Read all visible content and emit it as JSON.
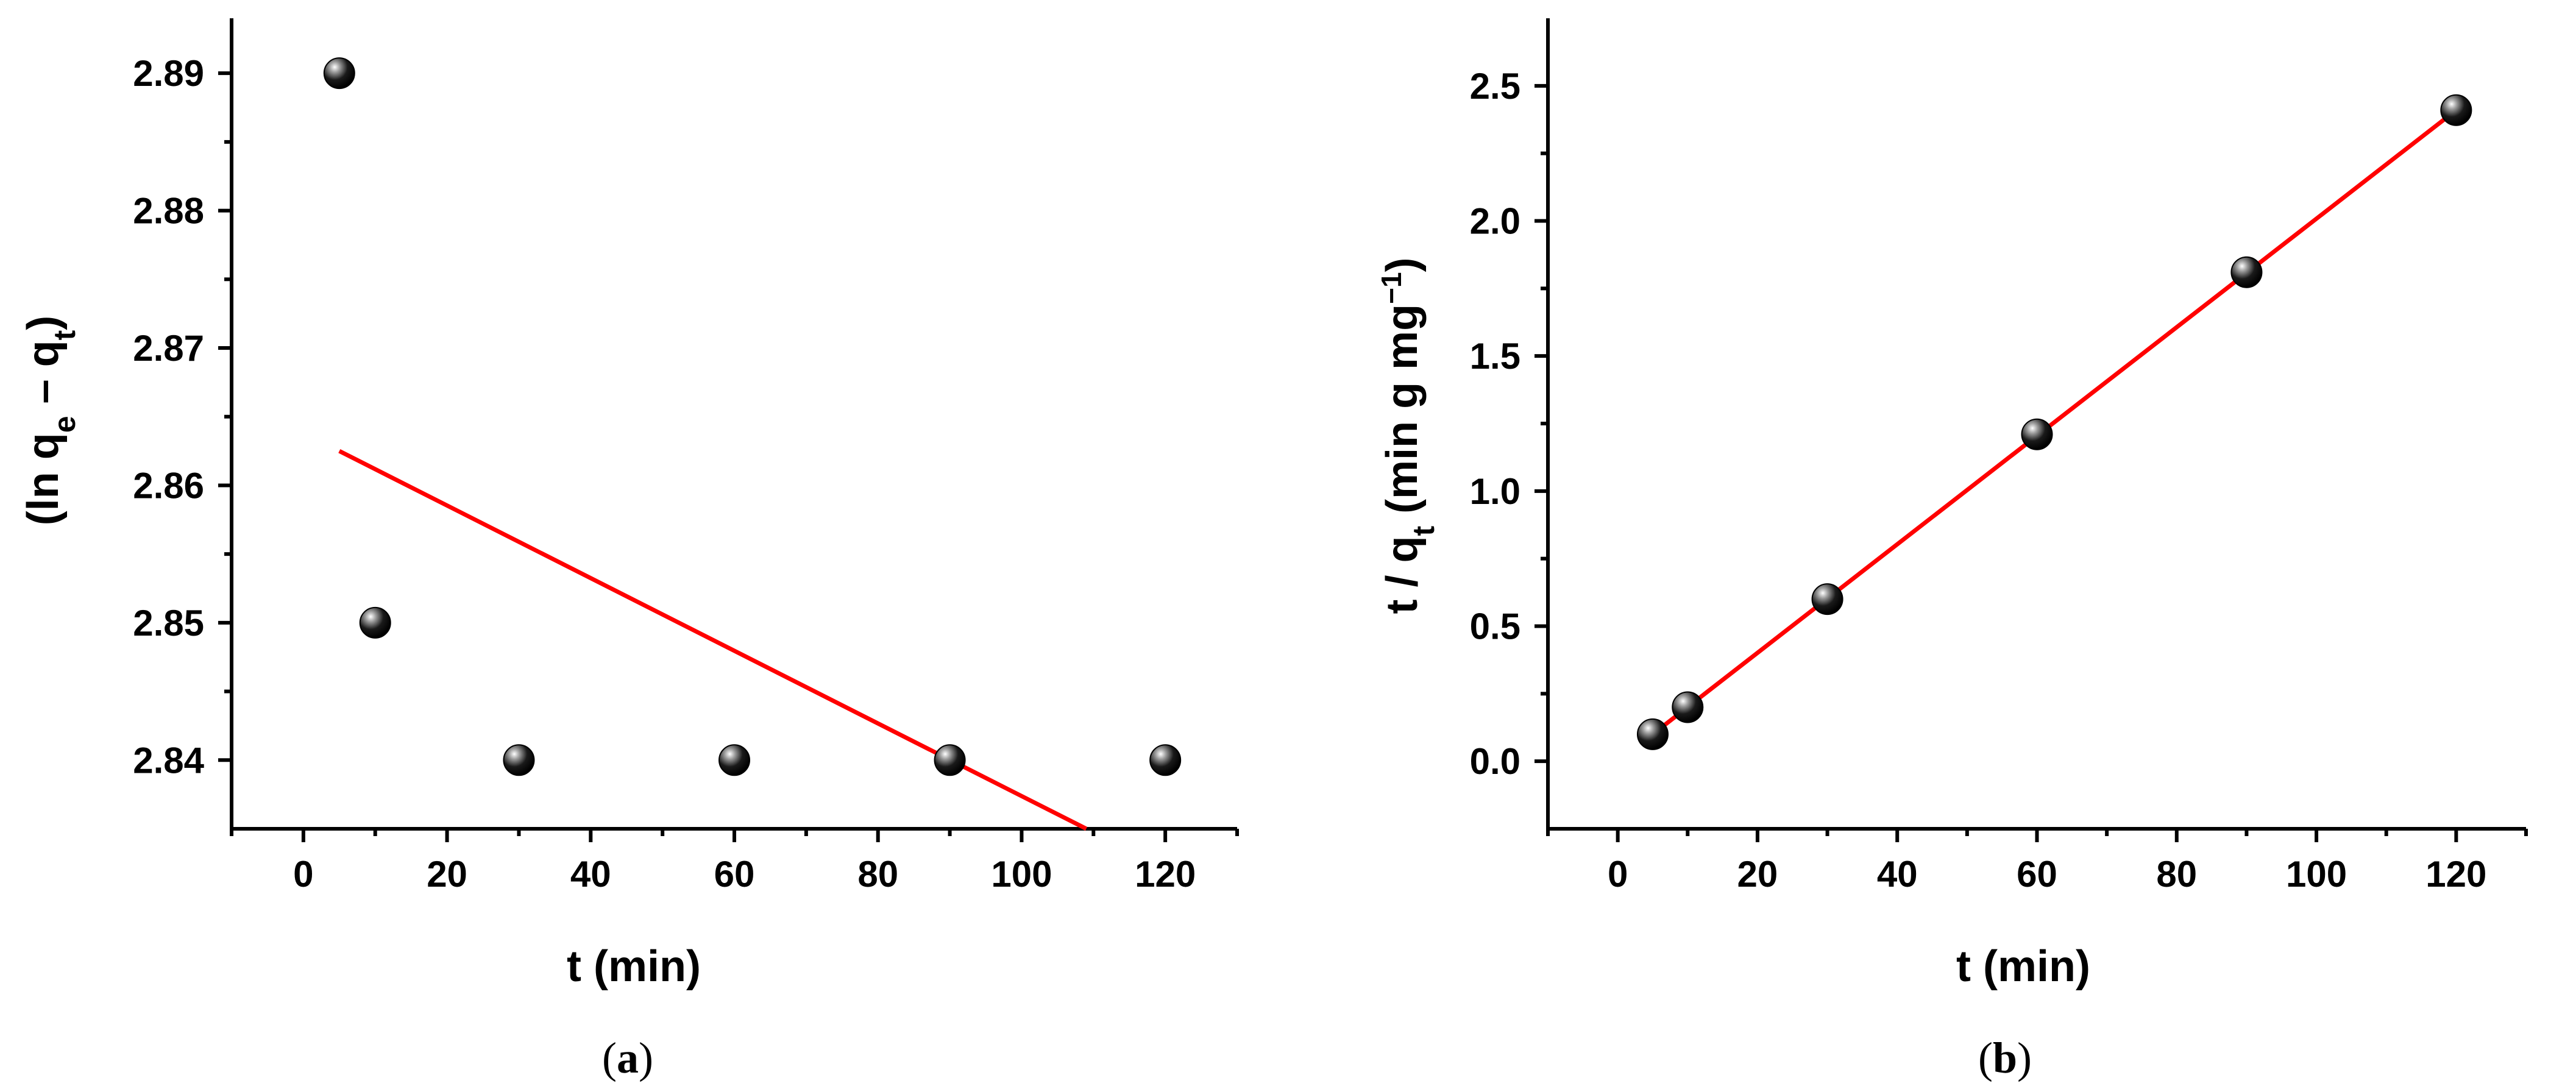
{
  "chart_data": [
    {
      "panel": "(a)",
      "type": "scatter",
      "xlabel": "t (min)",
      "ylabel": "(ln qₑ – qₜ)",
      "xlim": [
        -10,
        130
      ],
      "ylim": [
        2.835,
        2.894
      ],
      "xticks": [
        0,
        20,
        40,
        60,
        80,
        100,
        120
      ],
      "yticks": [
        2.84,
        2.85,
        2.86,
        2.87,
        2.88,
        2.89
      ],
      "ytick_labels": [
        "2.84",
        "2.85",
        "2.86",
        "2.87",
        "2.88",
        "2.89"
      ],
      "points": {
        "x": [
          5,
          10,
          30,
          60,
          90,
          120
        ],
        "y": [
          2.89,
          2.85,
          2.84,
          2.84,
          2.84,
          2.84
        ]
      },
      "fit_line": {
        "x": [
          5,
          109
        ],
        "y": [
          2.8625,
          2.835
        ],
        "color": "#ff0000"
      }
    },
    {
      "panel": "(b)",
      "type": "scatter",
      "xlabel": "t (min)",
      "ylabel": "t / qₜ (min g mg⁻¹)",
      "xlim": [
        -10,
        130
      ],
      "ylim": [
        -0.25,
        2.75
      ],
      "xticks": [
        0,
        20,
        40,
        60,
        80,
        100,
        120
      ],
      "yticks": [
        0.0,
        0.5,
        1.0,
        1.5,
        2.0,
        2.5
      ],
      "ytick_labels": [
        "0.0",
        "0.5",
        "1.0",
        "1.5",
        "2.0",
        "2.5"
      ],
      "points": {
        "x": [
          5,
          10,
          30,
          60,
          90,
          120
        ],
        "y": [
          0.1,
          0.2,
          0.6,
          1.21,
          1.81,
          2.41
        ]
      },
      "fit_line": {
        "x": [
          5,
          120
        ],
        "y": [
          0.1,
          2.41
        ],
        "color": "#ff0000"
      }
    }
  ],
  "marker_colors": {
    "dark": "#000000",
    "highlight": "#ffffff"
  }
}
